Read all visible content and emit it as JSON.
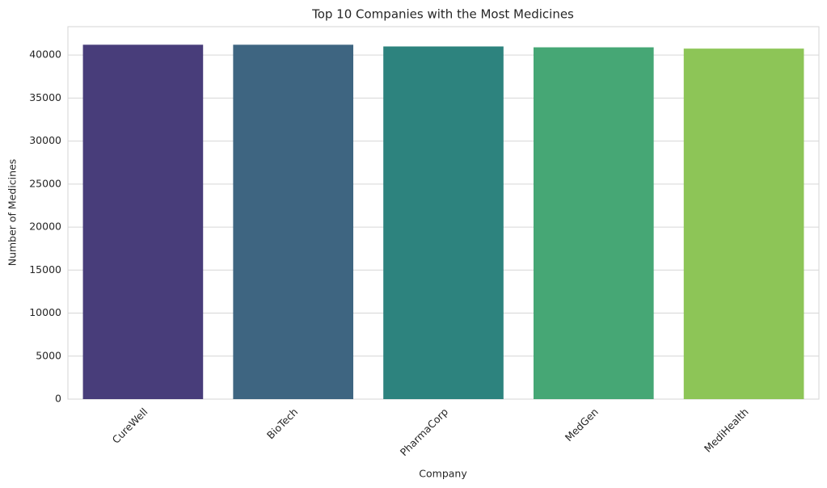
{
  "chart_data": {
    "type": "bar",
    "title": "Top 10 Companies with the Most Medicines",
    "x_label": "Company",
    "y_label": "Number of Medicines",
    "categories": [
      "CureWell",
      "BioTech",
      "PharmaCorp",
      "MedGen",
      "MediHealth"
    ],
    "values": [
      41200,
      41200,
      41000,
      40900,
      40750
    ],
    "colors": [
      "#483d7a",
      "#3e6581",
      "#2d837e",
      "#46a775",
      "#8dc557"
    ],
    "ylim": [
      0,
      43300
    ],
    "yticks": [
      0,
      5000,
      10000,
      15000,
      20000,
      25000,
      30000,
      35000,
      40000
    ],
    "grid": true
  }
}
